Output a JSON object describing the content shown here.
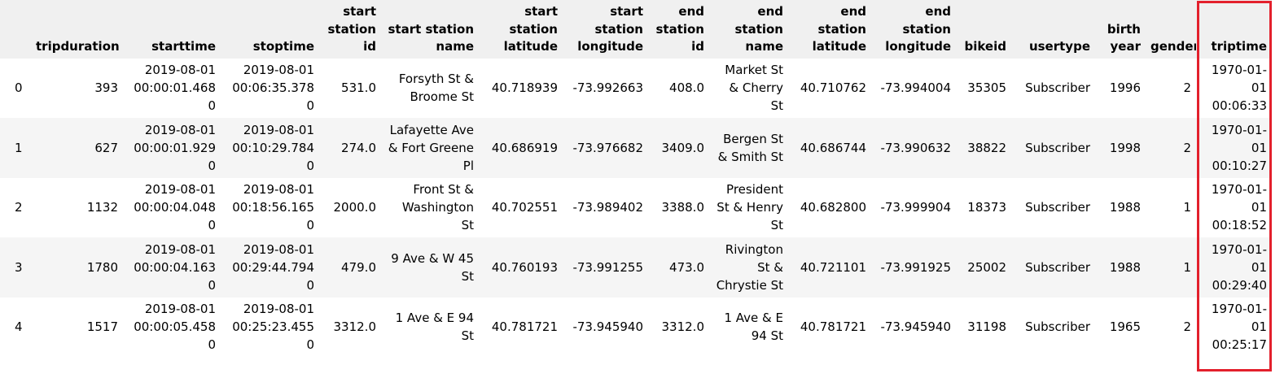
{
  "table": {
    "columns": [
      "",
      "tripduration",
      "starttime",
      "stoptime",
      "start station id",
      "start station name",
      "start station latitude",
      "start station longitude",
      "end station id",
      "end station name",
      "end station latitude",
      "end station longitude",
      "bikeid",
      "usertype",
      "birth year",
      "gender",
      "triptime"
    ],
    "rows": [
      [
        "0",
        "393",
        "2019-08-01 00:00:01.4680",
        "2019-08-01 00:06:35.3780",
        "531.0",
        "Forsyth St & Broome St",
        "40.718939",
        "-73.992663",
        "408.0",
        "Market St & Cherry St",
        "40.710762",
        "-73.994004",
        "35305",
        "Subscriber",
        "1996",
        "2",
        "1970-01-01 00:06:33"
      ],
      [
        "1",
        "627",
        "2019-08-01 00:00:01.9290",
        "2019-08-01 00:10:29.7840",
        "274.0",
        "Lafayette Ave & Fort Greene Pl",
        "40.686919",
        "-73.976682",
        "3409.0",
        "Bergen St & Smith St",
        "40.686744",
        "-73.990632",
        "38822",
        "Subscriber",
        "1998",
        "2",
        "1970-01-01 00:10:27"
      ],
      [
        "2",
        "1132",
        "2019-08-01 00:00:04.0480",
        "2019-08-01 00:18:56.1650",
        "2000.0",
        "Front St & Washington St",
        "40.702551",
        "-73.989402",
        "3388.0",
        "President St & Henry St",
        "40.682800",
        "-73.999904",
        "18373",
        "Subscriber",
        "1988",
        "1",
        "1970-01-01 00:18:52"
      ],
      [
        "3",
        "1780",
        "2019-08-01 00:00:04.1630",
        "2019-08-01 00:29:44.7940",
        "479.0",
        "9 Ave & W 45 St",
        "40.760193",
        "-73.991255",
        "473.0",
        "Rivington St & Chrystie St",
        "40.721101",
        "-73.991925",
        "25002",
        "Subscriber",
        "1988",
        "1",
        "1970-01-01 00:29:40"
      ],
      [
        "4",
        "1517",
        "2019-08-01 00:00:05.4580",
        "2019-08-01 00:25:23.4550",
        "3312.0",
        "1 Ave & E 94 St",
        "40.781721",
        "-73.945940",
        "3312.0",
        "1 Ave & E 94 St",
        "40.781721",
        "-73.945940",
        "31198",
        "Subscriber",
        "1965",
        "2",
        "1970-01-01 00:25:17"
      ]
    ]
  },
  "highlight": {
    "column": "triptime",
    "color": "#e3202c"
  },
  "colors": {
    "header_bg": "#f0f0f0",
    "stripe_bg": "#f5f5f5"
  }
}
